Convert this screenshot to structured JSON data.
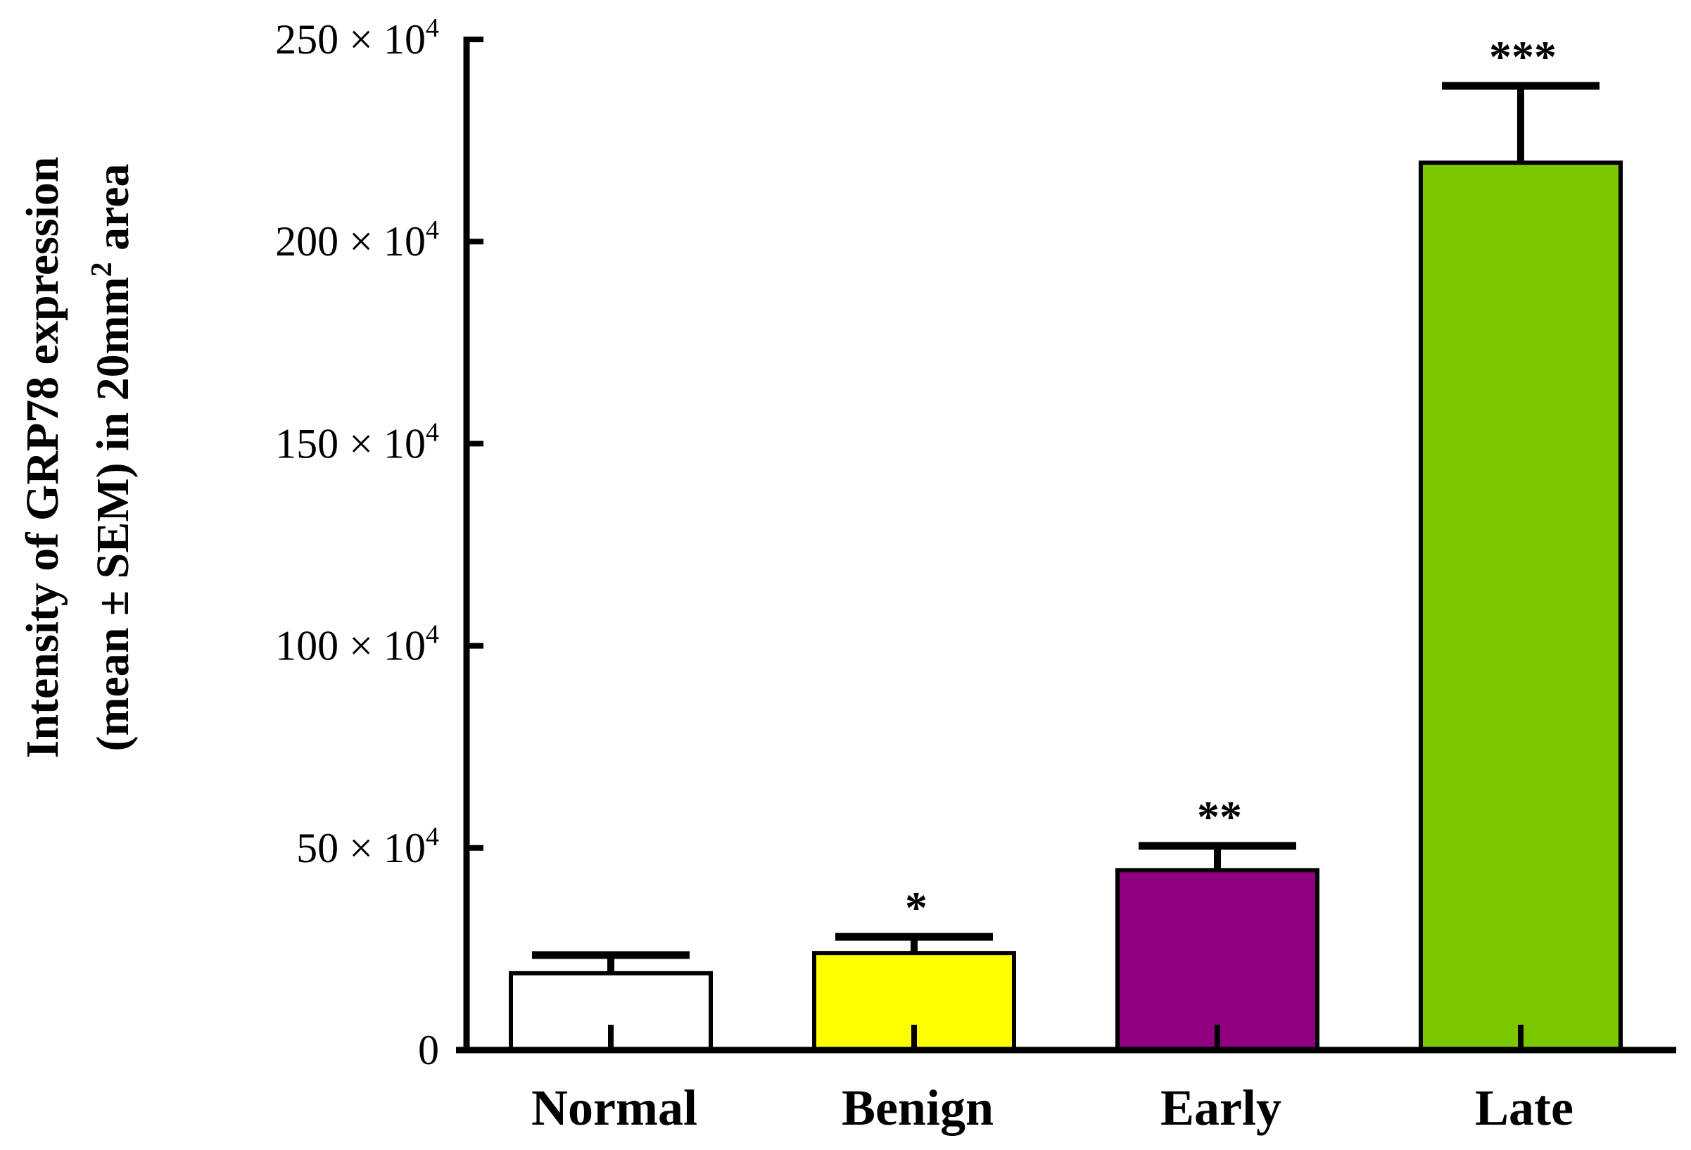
{
  "chart_data": {
    "type": "bar",
    "categories": [
      "Normal",
      "Benign",
      "Early",
      "Late"
    ],
    "values": [
      19,
      24,
      44.5,
      219.5
    ],
    "errors": [
      4.5,
      4,
      6,
      19
    ],
    "significance": [
      "",
      "*",
      "**",
      "***"
    ],
    "colors": [
      "#ffffff",
      "#ffff00",
      "#910080",
      "#7cc800"
    ],
    "title": "",
    "xlabel": "",
    "ylabel_line1": "Intensity of GRP78 expression",
    "ylabel_line2_prefix": "(mean ± SEM) in 20mm",
    "ylabel_line2_sup": "2",
    "ylabel_line2_suffix": " area",
    "ylim": [
      0,
      250
    ],
    "yticks": [
      0,
      50,
      100,
      150,
      200,
      250
    ],
    "ytick_labels": [
      "0",
      "50 × 10",
      "100 × 10",
      "150 × 10",
      "200 × 10",
      "250 × 10"
    ],
    "ytick_sup": [
      "",
      "4",
      "4",
      "4",
      "4",
      "4"
    ]
  }
}
